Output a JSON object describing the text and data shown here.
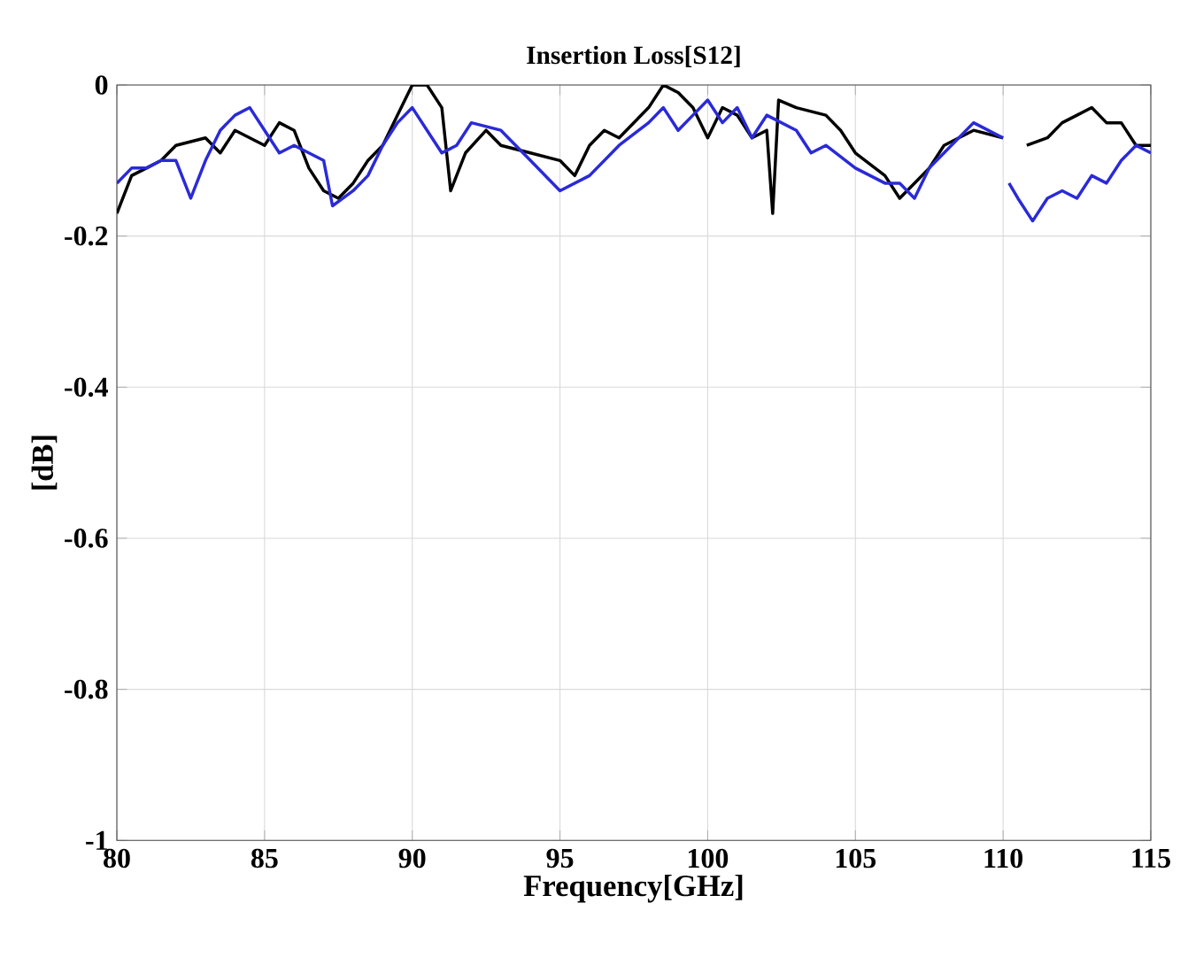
{
  "chart_data": {
    "type": "line",
    "title": "Insertion Loss[S12]",
    "xlabel": "Frequency[GHz]",
    "ylabel": "[dB]",
    "xlim": [
      80,
      115
    ],
    "ylim": [
      -1,
      0
    ],
    "xticks": [
      80,
      85,
      90,
      95,
      100,
      105,
      110,
      115
    ],
    "yticks": [
      -1,
      -0.8,
      -0.6,
      -0.4,
      -0.2,
      0
    ],
    "grid": true,
    "marker": "none",
    "line_style": "solid",
    "series": [
      {
        "color": "#000000",
        "x": [
          80,
          80.5,
          81,
          81.5,
          82,
          83,
          83.5,
          84,
          85,
          85.5,
          86,
          86.5,
          87,
          87.5,
          88,
          88.5,
          89,
          89.5,
          90,
          90.5,
          91,
          91.3,
          91.8,
          92.5,
          93,
          94,
          95,
          95.5,
          96,
          96.5,
          97,
          98,
          98.5,
          99,
          99.5,
          100,
          100.5,
          101,
          101.5,
          102,
          102.2,
          102.4,
          103,
          104,
          104.5,
          105,
          106,
          106.5,
          107,
          107.5,
          108,
          109,
          110,
          110.4,
          110.8,
          111.5,
          112,
          112.5,
          113,
          113.5,
          114,
          114.5,
          115
        ],
        "values": [
          -0.17,
          -0.12,
          -0.11,
          -0.1,
          -0.08,
          -0.07,
          -0.09,
          -0.06,
          -0.08,
          -0.05,
          -0.06,
          -0.11,
          -0.14,
          -0.15,
          -0.13,
          -0.1,
          -0.08,
          -0.04,
          0,
          0,
          -0.03,
          -0.14,
          -0.09,
          -0.06,
          -0.08,
          -0.09,
          -0.1,
          -0.12,
          -0.08,
          -0.06,
          -0.07,
          -0.03,
          0,
          -0.01,
          -0.03,
          -0.07,
          -0.03,
          -0.04,
          -0.07,
          -0.06,
          -0.17,
          -0.02,
          -0.03,
          -0.04,
          -0.06,
          -0.09,
          -0.12,
          -0.15,
          -0.13,
          -0.11,
          -0.08,
          -0.06,
          -0.07,
          null,
          -0.08,
          -0.07,
          -0.05,
          -0.04,
          -0.03,
          -0.05,
          -0.05,
          -0.08,
          -0.08
        ]
      },
      {
        "color": "#2a2ad8",
        "x": [
          80,
          80.5,
          81,
          81.5,
          82,
          82.5,
          83,
          83.5,
          84,
          84.5,
          85,
          85.5,
          86,
          87,
          87.3,
          88,
          88.5,
          89,
          89.5,
          90,
          90.5,
          91,
          91.5,
          92,
          93,
          94,
          95,
          95.5,
          96,
          97,
          98,
          98.5,
          99,
          99.5,
          100,
          100.5,
          101,
          101.5,
          102,
          103,
          103.5,
          104,
          105,
          106,
          106.5,
          107,
          107.5,
          108,
          109,
          110,
          110.1,
          110.2,
          110.5,
          111,
          111.5,
          112,
          112.5,
          113,
          113.5,
          114,
          114.5,
          115
        ],
        "values": [
          -0.13,
          -0.11,
          -0.11,
          -0.1,
          -0.1,
          -0.15,
          -0.1,
          -0.06,
          -0.04,
          -0.03,
          -0.06,
          -0.09,
          -0.08,
          -0.1,
          -0.16,
          -0.14,
          -0.12,
          -0.08,
          -0.05,
          -0.03,
          -0.06,
          -0.09,
          -0.08,
          -0.05,
          -0.06,
          -0.1,
          -0.14,
          -0.13,
          -0.12,
          -0.08,
          -0.05,
          -0.03,
          -0.06,
          -0.04,
          -0.02,
          -0.05,
          -0.03,
          -0.07,
          -0.04,
          -0.06,
          -0.09,
          -0.08,
          -0.11,
          -0.13,
          -0.13,
          -0.15,
          -0.11,
          -0.09,
          -0.05,
          -0.07,
          null,
          -0.13,
          -0.15,
          -0.18,
          -0.15,
          -0.14,
          -0.15,
          -0.12,
          -0.13,
          -0.1,
          -0.08,
          -0.09
        ]
      }
    ]
  }
}
